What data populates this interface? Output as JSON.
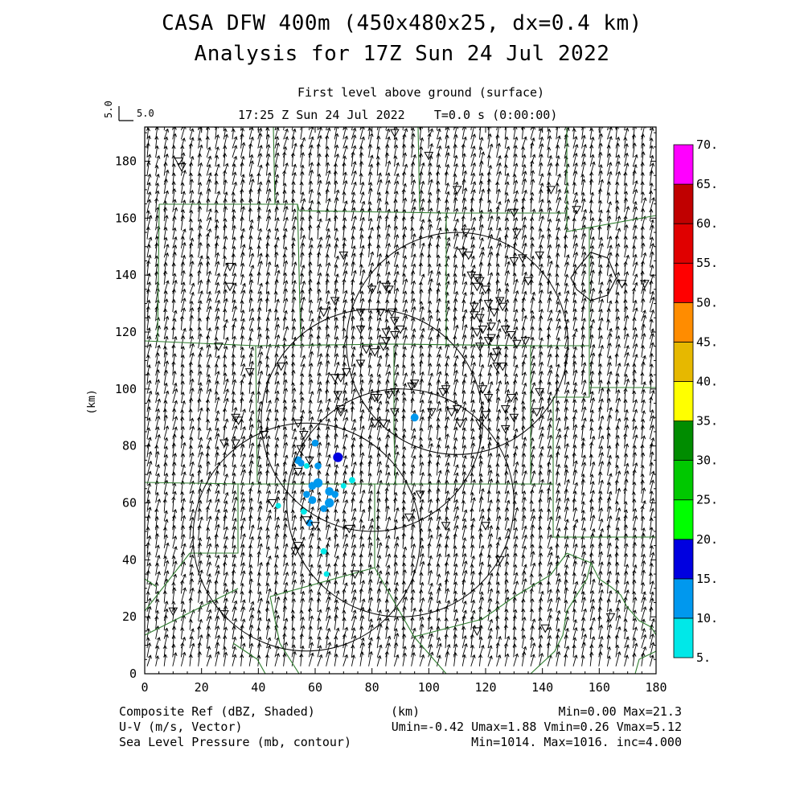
{
  "header": {
    "title1": "CASA DFW 400m (450x480x25, dx=0.4 km)",
    "title2": "Analysis for 17Z Sun 24 Jul 2022",
    "level": "First level above ground (surface)",
    "time": "17:25 Z Sun 24 Jul 2022    T=0.0 s (0:00:00)",
    "vector_ref_value": "5.0",
    "vector_ref_label": "5.0"
  },
  "footer": {
    "left1": "Composite Ref (dBZ, Shaded)",
    "left2": "U-V (m/s, Vector)",
    "left3": "Sea Level Pressure (mb, contour)",
    "center": "(km)",
    "right1": "Min=0.00 Max=21.3",
    "right2": "Umin=-0.42 Umax=1.88 Vmin=0.26 Vmax=5.12",
    "right3": "Min=1014. Max=1016. inc=4.000"
  },
  "colors": {
    "boundary": "#2e7d2e",
    "contour": "#000000",
    "refl_cyan": "#00e5e5",
    "refl_lightblue": "#0099ee",
    "refl_blue": "#0000dd"
  },
  "chart_data": {
    "type": "heatmap",
    "xlabel": "",
    "ylabel": "(km)",
    "xlim": [
      0,
      180
    ],
    "ylim": [
      0,
      192
    ],
    "xticks": [
      0,
      20,
      40,
      60,
      80,
      100,
      120,
      140,
      160,
      180
    ],
    "yticks": [
      0,
      20,
      40,
      60,
      80,
      100,
      120,
      140,
      160,
      180
    ],
    "colorbar": {
      "levels": [
        5,
        10,
        15,
        20,
        25,
        30,
        35,
        40,
        45,
        50,
        55,
        60,
        65,
        70
      ],
      "labels": [
        "5.",
        "10.",
        "15.",
        "20.",
        "25.",
        "30.",
        "35.",
        "40.",
        "45.",
        "50.",
        "55.",
        "60.",
        "65.",
        "70."
      ],
      "colors": [
        "#00e8e8",
        "#0098ee",
        "#0000e0",
        "#00ff00",
        "#00c800",
        "#008c00",
        "#ffff00",
        "#e6b800",
        "#ff8c00",
        "#ff0000",
        "#e00000",
        "#c00000",
        "#ff00ff",
        "#000000"
      ]
    },
    "wind": {
      "u_range": [
        -0.42,
        1.88
      ],
      "v_range": [
        0.26,
        5.12
      ],
      "ref_speed": 5.0
    },
    "pressure": {
      "min": 1014,
      "max": 1016,
      "inc": 4.0
    },
    "radar_rings": [
      {
        "cx": 110,
        "cy": 116,
        "r": 39
      },
      {
        "cx": 80,
        "cy": 89,
        "r": 39
      },
      {
        "cx": 90,
        "cy": 60,
        "r": 40
      },
      {
        "cx": 57,
        "cy": 48,
        "r": 40
      }
    ],
    "pressure_contours": [
      [
        [
          152,
          142
        ],
        [
          157,
          148
        ],
        [
          163,
          146
        ],
        [
          166,
          139
        ],
        [
          163,
          133
        ],
        [
          157,
          131
        ],
        [
          152,
          135
        ],
        [
          150,
          139
        ],
        [
          152,
          142
        ]
      ]
    ],
    "reflectivity_cells": [
      {
        "x": 55,
        "y": 74,
        "dbz": 10
      },
      {
        "x": 57,
        "y": 73,
        "dbz": 8
      },
      {
        "x": 61,
        "y": 73,
        "dbz": 10
      },
      {
        "x": 54,
        "y": 75,
        "dbz": 12
      },
      {
        "x": 68,
        "y": 76,
        "dbz": 15
      },
      {
        "x": 60,
        "y": 81,
        "dbz": 10
      },
      {
        "x": 59,
        "y": 66,
        "dbz": 12
      },
      {
        "x": 61,
        "y": 67,
        "dbz": 14
      },
      {
        "x": 57,
        "y": 63,
        "dbz": 10
      },
      {
        "x": 59,
        "y": 61,
        "dbz": 12
      },
      {
        "x": 65,
        "y": 64,
        "dbz": 13
      },
      {
        "x": 65,
        "y": 60,
        "dbz": 14
      },
      {
        "x": 63,
        "y": 58,
        "dbz": 10
      },
      {
        "x": 56,
        "y": 57,
        "dbz": 9
      },
      {
        "x": 58,
        "y": 53,
        "dbz": 10
      },
      {
        "x": 47,
        "y": 59,
        "dbz": 8
      },
      {
        "x": 67,
        "y": 63,
        "dbz": 10
      },
      {
        "x": 73,
        "y": 68,
        "dbz": 9
      },
      {
        "x": 95,
        "y": 90,
        "dbz": 12
      },
      {
        "x": 64,
        "y": 35,
        "dbz": 8
      },
      {
        "x": 63,
        "y": 43,
        "dbz": 9
      },
      {
        "x": 70,
        "y": 66,
        "dbz": 8
      }
    ],
    "stations": [
      [
        12,
        180
      ],
      [
        13,
        178
      ],
      [
        30,
        143
      ],
      [
        30,
        136
      ],
      [
        26,
        115
      ],
      [
        37,
        106
      ],
      [
        48,
        108
      ],
      [
        42,
        84
      ],
      [
        32,
        90
      ],
      [
        33,
        89
      ],
      [
        28,
        81
      ],
      [
        32,
        81
      ],
      [
        54,
        88
      ],
      [
        56,
        84
      ],
      [
        55,
        79
      ],
      [
        58,
        75
      ],
      [
        54,
        71
      ],
      [
        45,
        60
      ],
      [
        57,
        54
      ],
      [
        60,
        52
      ],
      [
        53,
        43
      ],
      [
        54,
        45
      ],
      [
        72,
        51
      ],
      [
        74,
        35
      ],
      [
        10,
        22
      ],
      [
        28,
        21
      ],
      [
        63,
        127
      ],
      [
        67,
        131
      ],
      [
        70,
        147
      ],
      [
        67,
        104
      ],
      [
        69,
        104
      ],
      [
        71,
        106
      ],
      [
        68,
        98
      ],
      [
        69,
        93
      ],
      [
        69,
        92
      ],
      [
        76,
        109
      ],
      [
        78,
        114
      ],
      [
        81,
        113
      ],
      [
        81,
        97
      ],
      [
        82,
        97
      ],
      [
        86,
        98
      ],
      [
        81,
        88
      ],
      [
        84,
        88
      ],
      [
        88,
        92
      ],
      [
        88,
        99
      ],
      [
        94,
        101
      ],
      [
        95,
        102
      ],
      [
        80,
        135
      ],
      [
        85,
        136
      ],
      [
        86,
        135
      ],
      [
        83,
        127
      ],
      [
        87,
        127
      ],
      [
        85,
        120
      ],
      [
        85,
        117
      ],
      [
        84,
        115
      ],
      [
        88,
        119
      ],
      [
        90,
        121
      ],
      [
        88,
        124
      ],
      [
        76,
        127
      ],
      [
        76,
        121
      ],
      [
        88,
        190
      ],
      [
        100,
        182
      ],
      [
        110,
        170
      ],
      [
        115,
        140
      ],
      [
        117,
        139
      ],
      [
        118,
        138
      ],
      [
        120,
        135
      ],
      [
        117,
        136
      ],
      [
        114,
        147
      ],
      [
        113,
        155
      ],
      [
        112,
        148
      ],
      [
        116,
        126
      ],
      [
        118,
        125
      ],
      [
        116,
        129
      ],
      [
        121,
        130
      ],
      [
        123,
        127
      ],
      [
        125,
        131
      ],
      [
        126,
        129
      ],
      [
        117,
        120
      ],
      [
        119,
        121
      ],
      [
        122,
        122
      ],
      [
        122,
        118
      ],
      [
        127,
        121
      ],
      [
        129,
        119
      ],
      [
        126,
        108
      ],
      [
        124,
        108
      ],
      [
        123,
        111
      ],
      [
        124,
        113
      ],
      [
        118,
        115
      ],
      [
        121,
        117
      ],
      [
        131,
        116
      ],
      [
        134,
        117
      ],
      [
        130,
        145
      ],
      [
        131,
        155
      ],
      [
        130,
        162
      ],
      [
        133,
        146
      ],
      [
        135,
        138
      ],
      [
        139,
        147
      ],
      [
        143,
        170
      ],
      [
        152,
        163
      ],
      [
        168,
        137
      ],
      [
        119,
        100
      ],
      [
        121,
        97
      ],
      [
        129,
        97
      ],
      [
        127,
        93
      ],
      [
        130,
        90
      ],
      [
        127,
        86
      ],
      [
        138,
        92
      ],
      [
        139,
        99
      ],
      [
        118,
        88
      ],
      [
        120,
        91
      ],
      [
        108,
        92
      ],
      [
        106,
        100
      ],
      [
        110,
        93
      ],
      [
        111,
        88
      ],
      [
        105,
        99
      ],
      [
        101,
        92
      ],
      [
        97,
        63
      ],
      [
        93,
        55
      ],
      [
        106,
        52
      ],
      [
        120,
        52
      ],
      [
        125,
        40
      ],
      [
        117,
        15
      ],
      [
        141,
        16
      ],
      [
        164,
        20
      ],
      [
        176,
        137
      ]
    ]
  }
}
